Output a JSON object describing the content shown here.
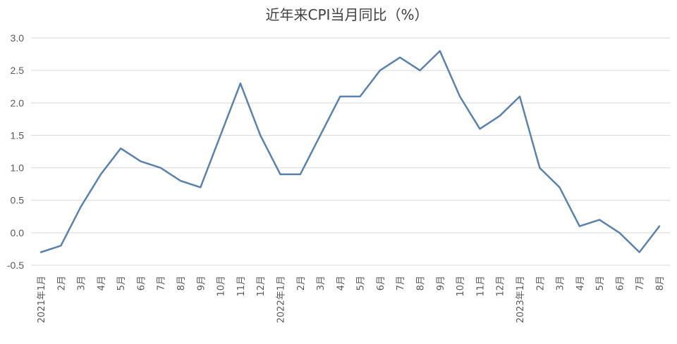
{
  "chart_data": {
    "type": "line",
    "title": "近年来CPI当月同比（%）",
    "xlabel": "",
    "ylabel": "",
    "ylim": [
      -0.5,
      3.0
    ],
    "yticks": [
      "3.0",
      "2.5",
      "2.0",
      "1.5",
      "1.0",
      "0.5",
      "0.0",
      "-0.5"
    ],
    "ytick_values": [
      3.0,
      2.5,
      2.0,
      1.5,
      1.0,
      0.5,
      0.0,
      -0.5
    ],
    "grid": true,
    "legend": "none",
    "line_color": "#5b81ad",
    "categories": [
      "2021年1月",
      "2月",
      "3月",
      "4月",
      "5月",
      "6月",
      "7月",
      "8月",
      "9月",
      "10月",
      "11月",
      "12月",
      "2022年1月",
      "2月",
      "3月",
      "4月",
      "5月",
      "6月",
      "7月",
      "8月",
      "9月",
      "10月",
      "11月",
      "12月",
      "2023年1月",
      "2月",
      "3月",
      "4月",
      "5月",
      "6月",
      "7月",
      "8月"
    ],
    "values": [
      -0.3,
      -0.2,
      0.4,
      0.9,
      1.3,
      1.1,
      1.0,
      0.8,
      0.7,
      1.5,
      2.3,
      1.5,
      0.9,
      0.9,
      1.5,
      2.1,
      2.1,
      2.5,
      2.7,
      2.5,
      2.8,
      2.1,
      1.6,
      1.8,
      2.1,
      1.0,
      0.7,
      0.1,
      0.2,
      0.0,
      -0.3,
      0.1
    ]
  }
}
